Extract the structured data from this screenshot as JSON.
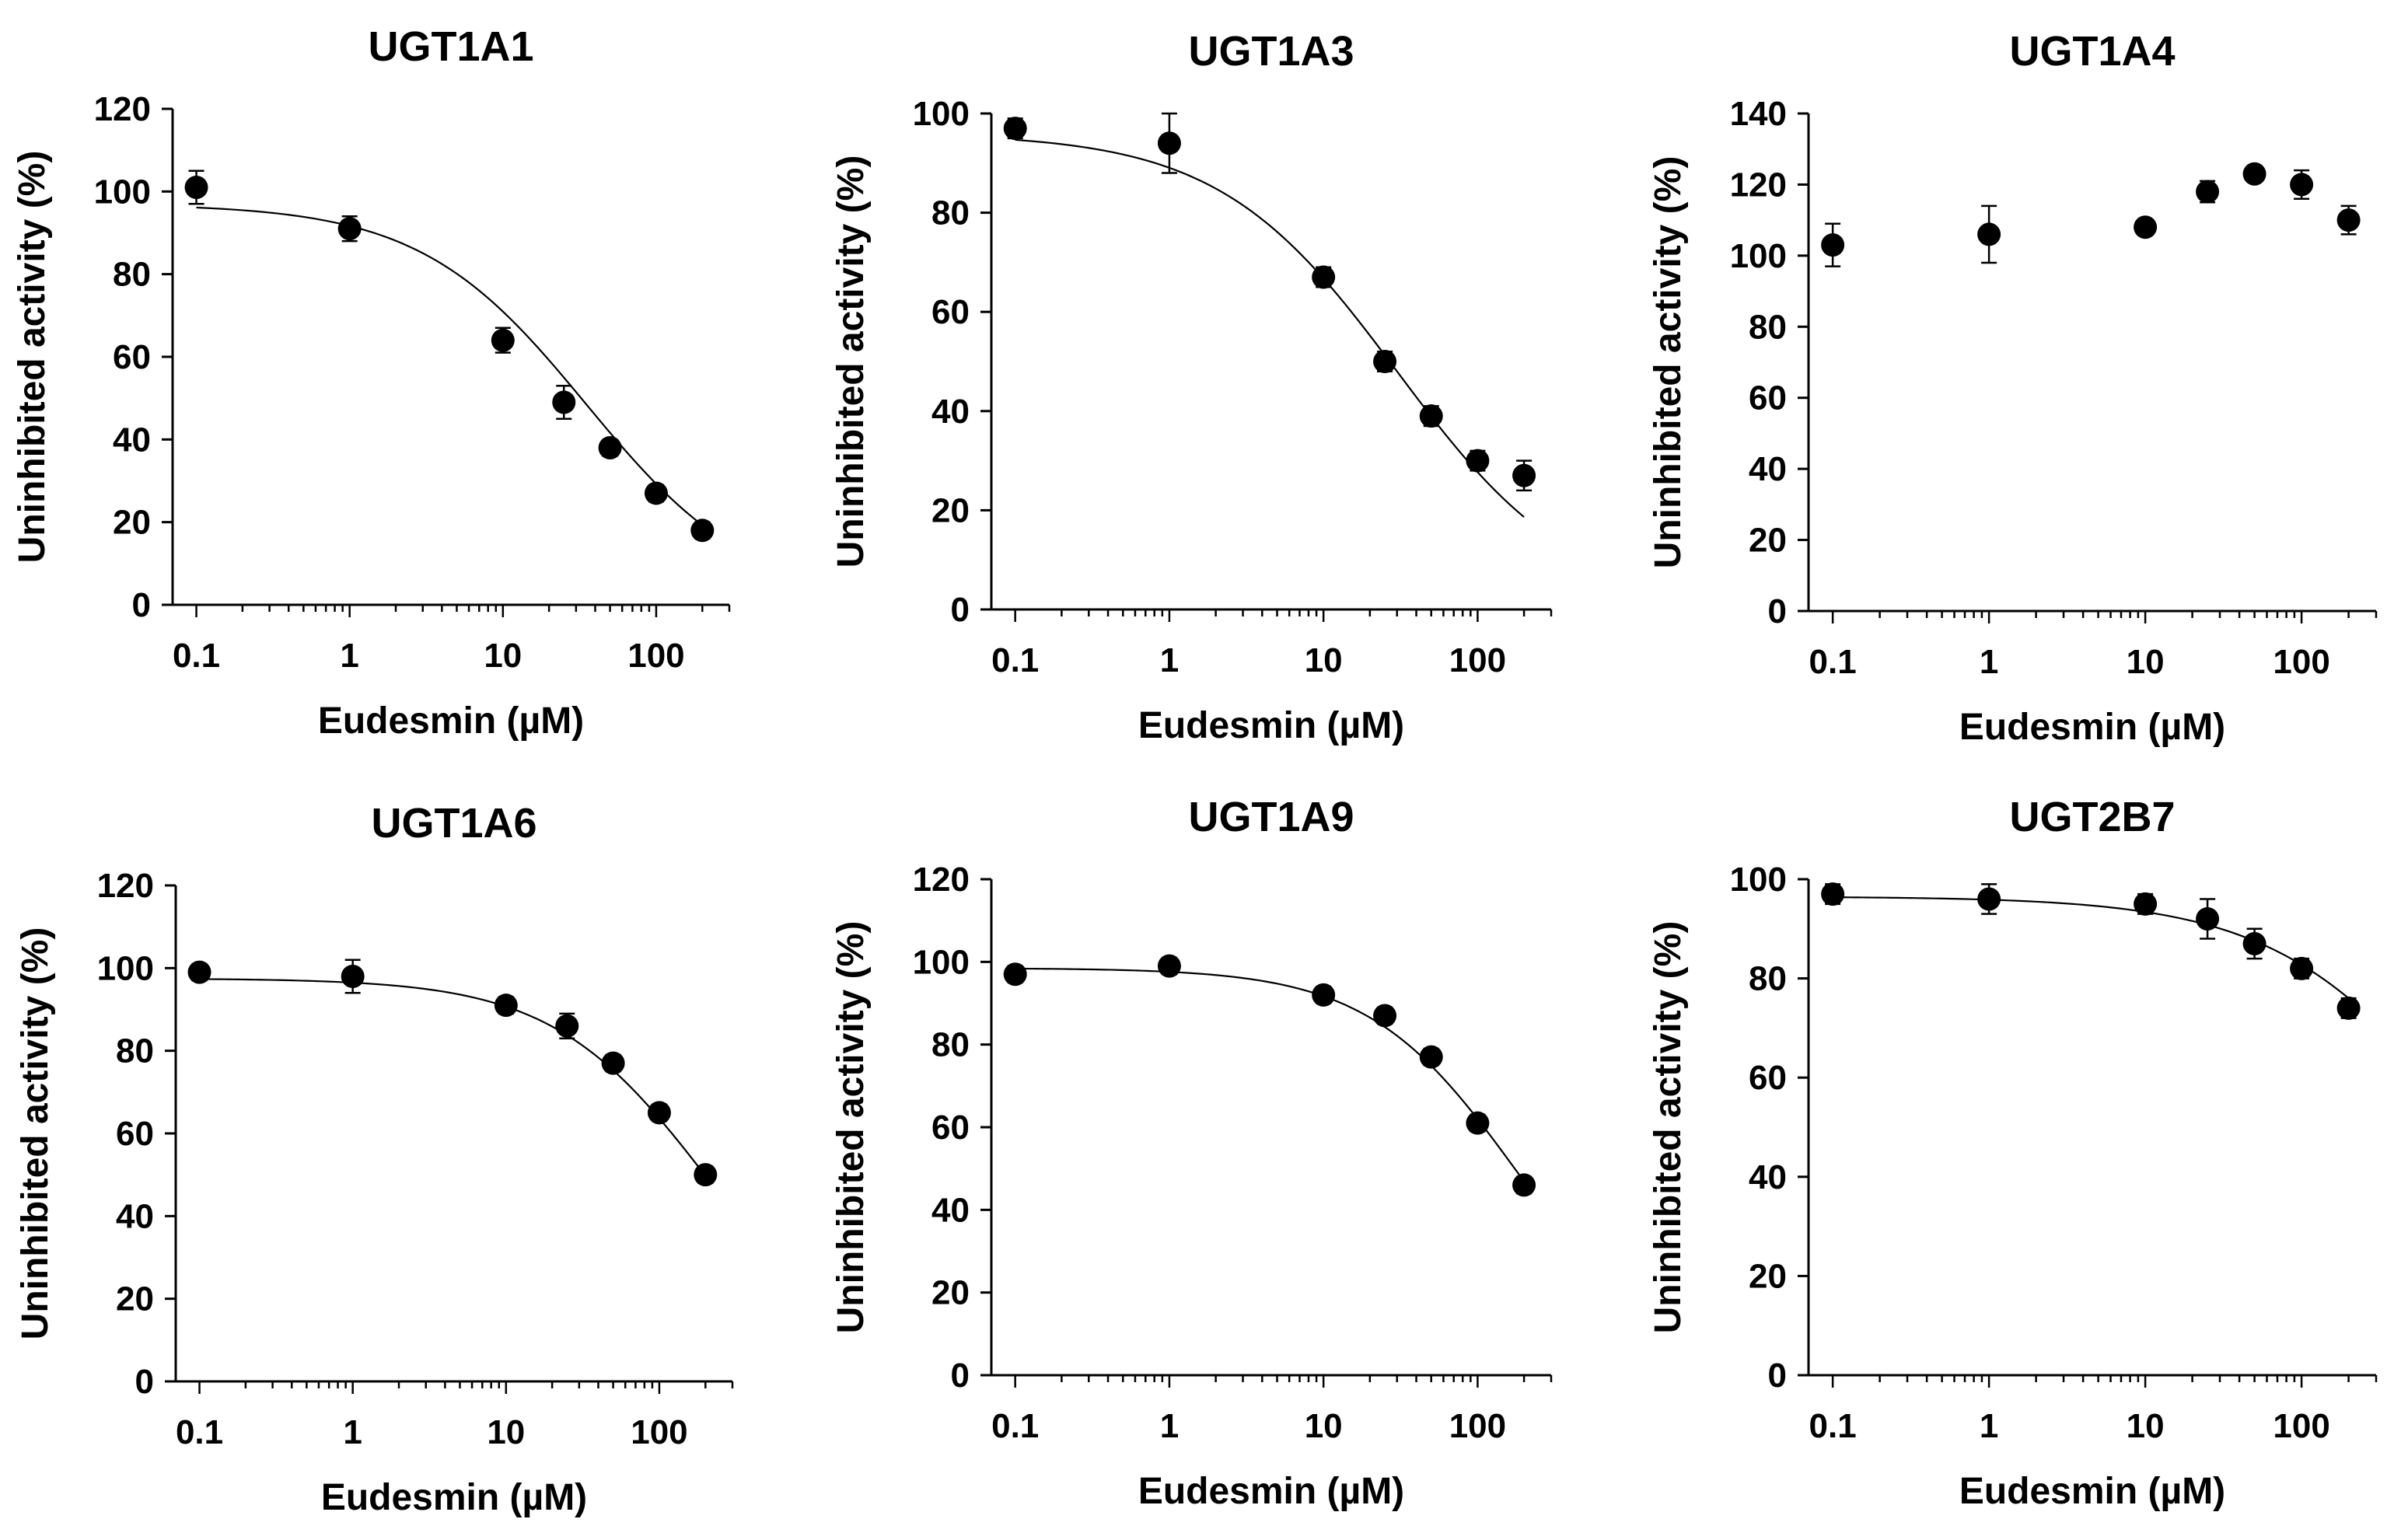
{
  "chart_data": [
    {
      "type": "scatter",
      "title": "UGT1A1",
      "xlabel": "Eudesmin (µM)",
      "ylabel": "Uninhibited activity (%)",
      "xscale": "log",
      "xlim": [
        0.07,
        300
      ],
      "xticks": [
        0.1,
        1,
        10,
        100
      ],
      "xtick_labels": [
        "0.1",
        "1",
        "10",
        "100"
      ],
      "ylim": [
        0,
        120
      ],
      "yticks": [
        0,
        20,
        40,
        60,
        80,
        100,
        120
      ],
      "x": [
        0.1,
        1,
        10,
        25,
        50,
        100,
        200
      ],
      "y": [
        101,
        91,
        64,
        49,
        38,
        27,
        18
      ],
      "err": [
        4,
        3,
        3,
        4,
        2,
        2,
        2
      ],
      "fit": {
        "model": "sigmoid",
        "top": 97,
        "bottom": 0,
        "ic50": 35,
        "hill": 0.8,
        "x_from": 0.1,
        "x_to": 200
      }
    },
    {
      "type": "scatter",
      "title": "UGT1A3",
      "xlabel": "Eudesmin (µM)",
      "ylabel": "Uninhibited activity (%)",
      "xscale": "log",
      "xlim": [
        0.07,
        300
      ],
      "xticks": [
        0.1,
        1,
        10,
        100
      ],
      "xtick_labels": [
        "0.1",
        "1",
        "10",
        "100"
      ],
      "ylim": [
        0,
        100
      ],
      "yticks": [
        0,
        20,
        40,
        60,
        80,
        100
      ],
      "x": [
        0.1,
        1,
        10,
        25,
        50,
        100,
        200
      ],
      "y": [
        97,
        94,
        67,
        50,
        39,
        30,
        27
      ],
      "err": [
        2,
        6,
        2,
        2,
        2,
        2,
        3
      ],
      "fit": {
        "model": "sigmoid",
        "top": 96,
        "bottom": 0,
        "ic50": 30,
        "hill": 0.75,
        "x_from": 0.1,
        "x_to": 200
      }
    },
    {
      "type": "scatter",
      "title": "UGT1A4",
      "xlabel": "Eudesmin (µM)",
      "ylabel": "Uninhibited activity (%)",
      "xscale": "log",
      "xlim": [
        0.07,
        300
      ],
      "xticks": [
        0.1,
        1,
        10,
        100
      ],
      "xtick_labels": [
        "0.1",
        "1",
        "10",
        "100"
      ],
      "ylim": [
        0,
        140
      ],
      "yticks": [
        0,
        20,
        40,
        60,
        80,
        100,
        120,
        140
      ],
      "x": [
        0.1,
        1,
        10,
        25,
        50,
        100,
        200
      ],
      "y": [
        103,
        106,
        108,
        118,
        123,
        120,
        110
      ],
      "err": [
        6,
        8,
        2,
        3,
        2,
        4,
        4
      ],
      "fit": null
    },
    {
      "type": "scatter",
      "title": "UGT1A6",
      "xlabel": "Eudesmin (µM)",
      "ylabel": "Uninhibited activity (%)",
      "xscale": "log",
      "xlim": [
        0.07,
        300
      ],
      "xticks": [
        0.1,
        1,
        10,
        100
      ],
      "xtick_labels": [
        "0.1",
        "1",
        "10",
        "100"
      ],
      "ylim": [
        0,
        120
      ],
      "yticks": [
        0,
        20,
        40,
        60,
        80,
        100,
        120
      ],
      "x": [
        0.1,
        1,
        10,
        25,
        50,
        100,
        200
      ],
      "y": [
        99,
        98,
        91,
        86,
        77,
        65,
        50
      ],
      "err": [
        2,
        4,
        2,
        3,
        2,
        2,
        2
      ],
      "fit": {
        "model": "sigmoid",
        "top": 97.5,
        "bottom": 0,
        "ic50": 210,
        "hill": 0.85,
        "x_from": 0.1,
        "x_to": 200
      }
    },
    {
      "type": "scatter",
      "title": "UGT1A9",
      "xlabel": "Eudesmin (µM)",
      "ylabel": "Uninhibited activity (%)",
      "xscale": "log",
      "xlim": [
        0.07,
        300
      ],
      "xticks": [
        0.1,
        1,
        10,
        100
      ],
      "xtick_labels": [
        "0.1",
        "1",
        "10",
        "100"
      ],
      "ylim": [
        0,
        120
      ],
      "yticks": [
        0,
        20,
        40,
        60,
        80,
        100,
        120
      ],
      "x": [
        0.1,
        1,
        10,
        25,
        50,
        100,
        200
      ],
      "y": [
        97,
        99,
        92,
        87,
        77,
        61,
        46
      ],
      "err": [
        2,
        2,
        2,
        2,
        2,
        2,
        2
      ],
      "fit": {
        "model": "sigmoid",
        "top": 98.5,
        "bottom": 0,
        "ic50": 180,
        "hill": 0.9,
        "x_from": 0.1,
        "x_to": 200
      }
    },
    {
      "type": "scatter",
      "title": "UGT2B7",
      "xlabel": "Eudesmin (µM)",
      "ylabel": "Uninhibited activity (%)",
      "xscale": "log",
      "xlim": [
        0.07,
        300
      ],
      "xticks": [
        0.1,
        1,
        10,
        100
      ],
      "xtick_labels": [
        "0.1",
        "1",
        "10",
        "100"
      ],
      "ylim": [
        0,
        100
      ],
      "yticks": [
        0,
        20,
        40,
        60,
        80,
        100
      ],
      "x": [
        0.1,
        1,
        10,
        25,
        50,
        100,
        200
      ],
      "y": [
        97,
        96,
        95,
        92,
        87,
        82,
        74
      ],
      "err": [
        2,
        3,
        2,
        4,
        3,
        2,
        2
      ],
      "fit": {
        "model": "sigmoid",
        "top": 96.5,
        "bottom": 0,
        "ic50": 1300,
        "hill": 0.7,
        "x_from": 0.1,
        "x_to": 200
      }
    }
  ]
}
